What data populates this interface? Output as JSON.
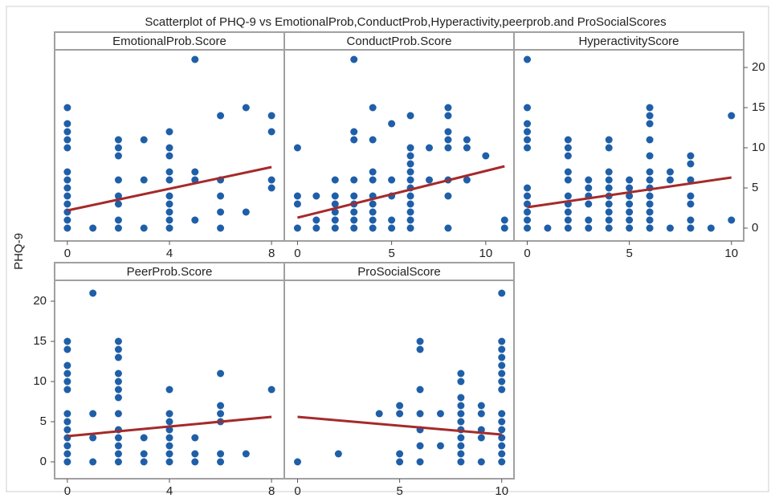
{
  "title": "Scatterplot of PHQ-9 vs EmotionalProb,ConductProb,Hyperactivity,peerprob.and ProSocialScores",
  "y_label": "PHQ-9",
  "chart_data": [
    {
      "type": "scatter",
      "title": "EmotionalProb.Score",
      "color": "#1f5fa8",
      "x": [
        0,
        0,
        0,
        0,
        0,
        0,
        0,
        0,
        0,
        0,
        0,
        0,
        0,
        1,
        2,
        2,
        2,
        2,
        2,
        2,
        2,
        2,
        3,
        3,
        3,
        4,
        4,
        4,
        4,
        4,
        4,
        4,
        4,
        4,
        4,
        5,
        5,
        5,
        5,
        6,
        6,
        6,
        6,
        6,
        7,
        7,
        8,
        8,
        8,
        8
      ],
      "y": [
        0,
        1,
        2,
        3,
        4,
        5,
        6,
        7,
        10,
        11,
        12,
        13,
        15,
        0,
        0,
        1,
        3,
        4,
        6,
        9,
        10,
        11,
        0,
        6,
        11,
        0,
        1,
        2,
        3,
        4,
        6,
        7,
        9,
        10,
        12,
        1,
        6,
        7,
        21,
        0,
        2,
        4,
        6,
        14,
        2,
        15,
        5,
        6,
        12,
        14
      ],
      "fit_line": {
        "x": [
          0,
          8
        ],
        "y": [
          2.2,
          7.6
        ],
        "color": "#a52a2a"
      },
      "xlim": [
        -0.5,
        8.5
      ],
      "xticks": [
        0,
        4,
        8
      ],
      "ylim": [
        -1.6,
        22.2
      ]
    },
    {
      "type": "scatter",
      "title": "ConductProb.Score",
      "color": "#1f5fa8",
      "x": [
        0,
        0,
        0,
        0,
        1,
        1,
        1,
        2,
        2,
        2,
        2,
        2,
        2,
        3,
        3,
        3,
        3,
        3,
        3,
        3,
        3,
        3,
        4,
        4,
        4,
        4,
        4,
        4,
        4,
        4,
        4,
        5,
        5,
        5,
        5,
        5,
        6,
        6,
        6,
        6,
        6,
        6,
        6,
        6,
        6,
        6,
        6,
        6,
        7,
        7,
        8,
        8,
        8,
        8,
        8,
        8,
        8,
        8,
        9,
        9,
        9,
        10,
        11,
        11
      ],
      "y": [
        0,
        3,
        4,
        10,
        0,
        1,
        4,
        0,
        1,
        2,
        3,
        4,
        6,
        0,
        1,
        2,
        3,
        4,
        6,
        11,
        12,
        21,
        0,
        1,
        2,
        3,
        4,
        6,
        7,
        11,
        15,
        0,
        1,
        4,
        6,
        13,
        0,
        1,
        2,
        3,
        4,
        5,
        6,
        7,
        8,
        9,
        10,
        14,
        6,
        10,
        0,
        4,
        6,
        10,
        11,
        12,
        14,
        15,
        6,
        10,
        11,
        9,
        0,
        1
      ],
      "fit_line": {
        "x": [
          0,
          11
        ],
        "y": [
          1.3,
          7.7
        ],
        "color": "#a52a2a"
      },
      "xlim": [
        -0.7,
        11.5
      ],
      "xticks": [
        0,
        5,
        10
      ],
      "ylim": [
        -1.6,
        22.2
      ]
    },
    {
      "type": "scatter",
      "title": "HyperactivityScore",
      "color": "#1f5fa8",
      "x": [
        0,
        0,
        0,
        0,
        0,
        0,
        0,
        0,
        0,
        0,
        0,
        0,
        1,
        2,
        2,
        2,
        2,
        2,
        2,
        2,
        2,
        2,
        2,
        3,
        3,
        3,
        3,
        3,
        3,
        4,
        4,
        4,
        4,
        4,
        4,
        4,
        4,
        4,
        4,
        5,
        5,
        5,
        5,
        5,
        5,
        5,
        6,
        6,
        6,
        6,
        6,
        6,
        6,
        6,
        6,
        6,
        6,
        6,
        6,
        7,
        7,
        7,
        8,
        8,
        8,
        8,
        8,
        8,
        8,
        9,
        10,
        10
      ],
      "y": [
        0,
        1,
        2,
        3,
        4,
        5,
        10,
        11,
        12,
        13,
        15,
        21,
        0,
        0,
        1,
        2,
        3,
        4,
        6,
        7,
        9,
        10,
        11,
        0,
        1,
        3,
        4,
        5,
        6,
        0,
        1,
        2,
        3,
        4,
        5,
        6,
        7,
        10,
        11,
        0,
        1,
        2,
        3,
        4,
        5,
        6,
        0,
        1,
        2,
        3,
        4,
        5,
        6,
        7,
        9,
        11,
        13,
        14,
        15,
        0,
        6,
        7,
        0,
        1,
        3,
        4,
        6,
        8,
        9,
        0,
        1,
        14
      ],
      "fit_line": {
        "x": [
          0,
          10
        ],
        "y": [
          2.6,
          6.3
        ],
        "color": "#a52a2a"
      },
      "xlim": [
        -0.65,
        10.6
      ],
      "xticks": [
        0,
        5,
        10
      ],
      "ylim": [
        -1.6,
        22.2
      ],
      "yticks": [
        0,
        5,
        10,
        15,
        20
      ],
      "y_axis": "right"
    },
    {
      "type": "scatter",
      "title": "PeerProb.Score",
      "color": "#1f5fa8",
      "x": [
        0,
        0,
        0,
        0,
        0,
        0,
        0,
        0,
        0,
        0,
        0,
        0,
        0,
        1,
        1,
        1,
        1,
        2,
        2,
        2,
        2,
        2,
        2,
        2,
        2,
        2,
        2,
        2,
        2,
        2,
        3,
        3,
        3,
        4,
        4,
        4,
        4,
        4,
        4,
        4,
        4,
        5,
        5,
        5,
        6,
        6,
        6,
        6,
        6,
        6,
        7,
        8
      ],
      "y": [
        0,
        1,
        2,
        3,
        4,
        5,
        6,
        9,
        10,
        11,
        12,
        14,
        15,
        0,
        3,
        6,
        21,
        0,
        1,
        2,
        3,
        4,
        6,
        8,
        9,
        10,
        11,
        13,
        14,
        15,
        0,
        1,
        3,
        0,
        1,
        2,
        3,
        4,
        5,
        6,
        9,
        0,
        1,
        3,
        0,
        1,
        5,
        6,
        7,
        11,
        1,
        9
      ],
      "fit_line": {
        "x": [
          0,
          8
        ],
        "y": [
          3.2,
          5.6
        ],
        "color": "#a52a2a"
      },
      "xlim": [
        -0.5,
        8.5
      ],
      "xticks": [
        0,
        4,
        8
      ],
      "ylim": [
        -2.1,
        22.6
      ],
      "yticks": [
        0,
        5,
        10,
        15,
        20
      ],
      "y_axis": "left"
    },
    {
      "type": "scatter",
      "title": "ProSocialScore",
      "color": "#1f5fa8",
      "x": [
        0,
        2,
        4,
        5,
        5,
        5,
        5,
        6,
        6,
        6,
        6,
        6,
        6,
        6,
        7,
        7,
        8,
        8,
        8,
        8,
        8,
        8,
        8,
        8,
        8,
        8,
        8,
        9,
        9,
        9,
        9,
        9,
        10,
        10,
        10,
        10,
        10,
        10,
        10,
        10,
        10,
        10,
        10,
        10,
        10,
        10,
        10
      ],
      "y": [
        0,
        1,
        6,
        0,
        1,
        6,
        7,
        0,
        2,
        4,
        6,
        9,
        14,
        15,
        2,
        6,
        0,
        1,
        2,
        3,
        4,
        5,
        6,
        7,
        8,
        10,
        11,
        0,
        3,
        4,
        6,
        7,
        0,
        1,
        2,
        3,
        4,
        5,
        6,
        9,
        10,
        11,
        12,
        13,
        14,
        15,
        21
      ],
      "fit_line": {
        "x": [
          0,
          10
        ],
        "y": [
          5.6,
          3.4
        ],
        "color": "#a52a2a"
      },
      "xlim": [
        -0.65,
        10.6
      ],
      "xticks": [
        0,
        5,
        10
      ],
      "ylim": [
        -2.1,
        22.6
      ]
    }
  ]
}
